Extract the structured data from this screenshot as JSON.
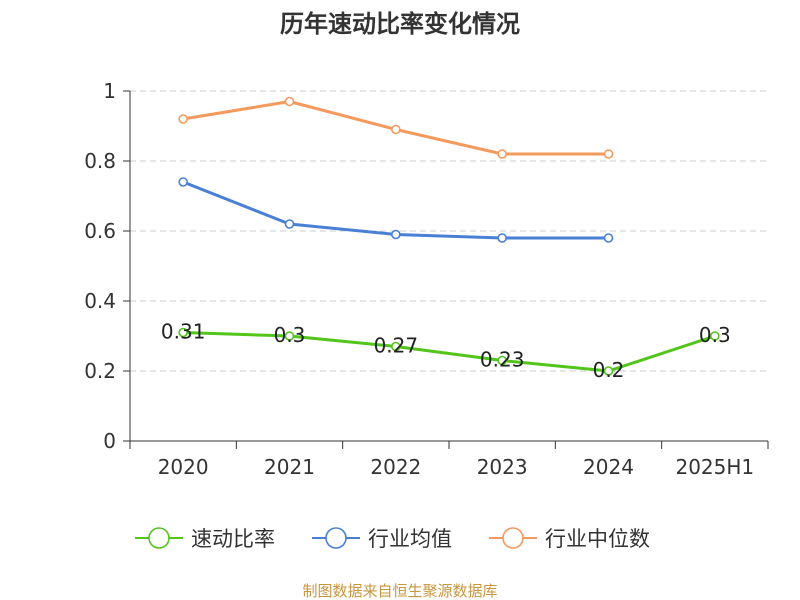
{
  "chart_data": {
    "type": "line",
    "title": "历年速动比率变化情况",
    "xlabel": "",
    "ylabel": "",
    "categories": [
      "2020",
      "2021",
      "2022",
      "2023",
      "2024",
      "2025H1"
    ],
    "y_ticks": [
      "0",
      "0.2",
      "0.4",
      "0.6",
      "0.8",
      "1"
    ],
    "ylim": [
      0,
      1
    ],
    "grid": "horizontal dashed",
    "legend_position": "bottom",
    "series": [
      {
        "name": "速动比率",
        "color": "#52c41a",
        "values": [
          0.31,
          0.3,
          0.27,
          0.23,
          0.2,
          0.3
        ],
        "labels": [
          "0.31",
          "0.3",
          "0.27",
          "0.23",
          "0.2",
          "0.3"
        ]
      },
      {
        "name": "行业均值",
        "color": "#4a7fd6",
        "values": [
          0.74,
          0.62,
          0.59,
          0.58,
          0.58,
          null
        ]
      },
      {
        "name": "行业中位数",
        "color": "#f59a5e",
        "values": [
          0.92,
          0.97,
          0.89,
          0.82,
          0.82,
          null
        ]
      }
    ]
  },
  "source": "制图数据来自恒生聚源数据库"
}
